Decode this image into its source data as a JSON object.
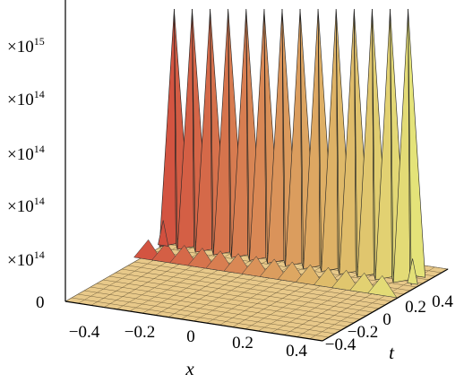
{
  "chart_data": {
    "type": "surface3d",
    "x_axis": {
      "label": "x",
      "ticks": [
        -0.4,
        -0.2,
        0,
        0.2,
        0.4
      ],
      "tick_labels": [
        "−0.4",
        "−0.2",
        "0",
        "0.2",
        "0.4"
      ],
      "range": [
        -0.5,
        0.5
      ]
    },
    "t_axis": {
      "label": "t",
      "ticks": [
        -0.4,
        -0.2,
        0,
        0.2,
        0.4
      ],
      "tick_labels": [
        "−0.4",
        "−0.2",
        "0",
        "0.2",
        "0.4"
      ],
      "range": [
        -0.5,
        0.5
      ]
    },
    "z_axis": {
      "tick_labels": [
        "0",
        "×10",
        "×10",
        "×10",
        "×10",
        "×10"
      ],
      "tick_exponents": [
        "",
        "14",
        "14",
        "14",
        "14",
        "15"
      ]
    },
    "surface": {
      "peak_count": 14,
      "peak_x": [
        -0.47,
        -0.4,
        -0.33,
        -0.26,
        -0.19,
        -0.12,
        -0.05,
        0.02,
        0.09,
        0.16,
        0.23,
        0.3,
        0.37,
        0.44
      ],
      "small_peak_x": [
        -0.5,
        0.47
      ],
      "colormap": [
        "#d2503f",
        "#e4e47a"
      ]
    }
  }
}
